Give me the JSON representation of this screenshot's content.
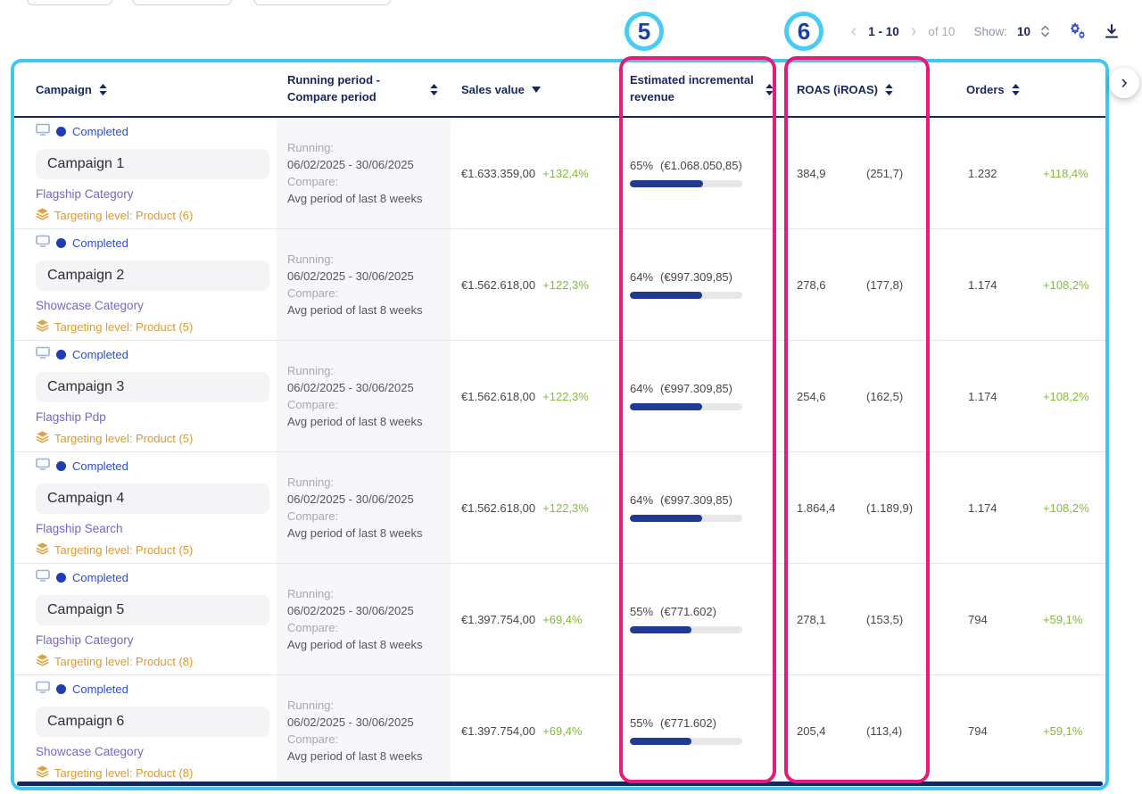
{
  "annotations": {
    "badge5": "5",
    "badge6": "6"
  },
  "icons": {
    "prev": "‹",
    "next": "›",
    "scroll_right": "›"
  },
  "pagination": {
    "range": "1 - 10",
    "of": "of 10",
    "show_label": "Show:",
    "show_value": "10"
  },
  "table": {
    "headers": [
      {
        "label": "Campaign",
        "sort": "unsorted"
      },
      {
        "label": "Running period - Compare period",
        "sort": "unsorted"
      },
      {
        "label": "Sales value",
        "sort": "desc"
      },
      {
        "label": "Estimated incremental revenue",
        "sort": "unsorted"
      },
      {
        "label": "ROAS (iROAS)",
        "sort": "unsorted"
      },
      {
        "label": "Orders",
        "sort": "unsorted"
      }
    ],
    "rows": [
      {
        "status": "Completed",
        "name": "Campaign 1",
        "category": "Flagship Category",
        "targeting": "Targeting level: Product (6)",
        "running_label": "Running:",
        "running_dates": "06/02/2025 - 30/06/2025",
        "compare_label": "Compare:",
        "compare_value": "Avg period of last 8 weeks",
        "sales_value": "€1.633.359,00",
        "sales_change": "+132,4%",
        "incr_pct": "65%",
        "incr_value": "(€1.068.050,85)",
        "incr_bar": 65,
        "roas": "384,9",
        "iroas": "(251,7)",
        "orders": "1.232",
        "orders_change": "+118,4%"
      },
      {
        "status": "Completed",
        "name": "Campaign 2",
        "category": "Showcase Category",
        "targeting": "Targeting level: Product (5)",
        "running_label": "Running:",
        "running_dates": "06/02/2025 - 30/06/2025",
        "compare_label": "Compare:",
        "compare_value": "Avg period of last 8 weeks",
        "sales_value": "€1.562.618,00",
        "sales_change": "+122,3%",
        "incr_pct": "64%",
        "incr_value": "(€997.309,85)",
        "incr_bar": 64,
        "roas": "278,6",
        "iroas": "(177,8)",
        "orders": "1.174",
        "orders_change": "+108,2%"
      },
      {
        "status": "Completed",
        "name": "Campaign 3",
        "category": "Flagship Pdp",
        "targeting": "Targeting level: Product (5)",
        "running_label": "Running:",
        "running_dates": "06/02/2025 - 30/06/2025",
        "compare_label": "Compare:",
        "compare_value": "Avg period of last 8 weeks",
        "sales_value": "€1.562.618,00",
        "sales_change": "+122,3%",
        "incr_pct": "64%",
        "incr_value": "(€997.309,85)",
        "incr_bar": 64,
        "roas": "254,6",
        "iroas": "(162,5)",
        "orders": "1.174",
        "orders_change": "+108,2%"
      },
      {
        "status": "Completed",
        "name": "Campaign 4",
        "category": "Flagship Search",
        "targeting": "Targeting level: Product (5)",
        "running_label": "Running:",
        "running_dates": "06/02/2025 - 30/06/2025",
        "compare_label": "Compare:",
        "compare_value": "Avg period of last 8 weeks",
        "sales_value": "€1.562.618,00",
        "sales_change": "+122,3%",
        "incr_pct": "64%",
        "incr_value": "(€997.309,85)",
        "incr_bar": 64,
        "roas": "1.864,4",
        "iroas": "(1.189,9)",
        "orders": "1.174",
        "orders_change": "+108,2%"
      },
      {
        "status": "Completed",
        "name": "Campaign 5",
        "category": "Flagship Category",
        "targeting": "Targeting level: Product (8)",
        "running_label": "Running:",
        "running_dates": "06/02/2025 - 30/06/2025",
        "compare_label": "Compare:",
        "compare_value": "Avg period of last 8 weeks",
        "sales_value": "€1.397.754,00",
        "sales_change": "+69,4%",
        "incr_pct": "55%",
        "incr_value": "(€771.602)",
        "incr_bar": 55,
        "roas": "278,1",
        "iroas": "(153,5)",
        "orders": "794",
        "orders_change": "+59,1%"
      },
      {
        "status": "Completed",
        "name": "Campaign 6",
        "category": "Showcase Category",
        "targeting": "Targeting level: Product (8)",
        "running_label": "Running:",
        "running_dates": "06/02/2025 - 30/06/2025",
        "compare_label": "Compare:",
        "compare_value": "Avg period of last 8 weeks",
        "sales_value": "€1.397.754,00",
        "sales_change": "+69,4%",
        "incr_pct": "55%",
        "incr_value": "(€771.602)",
        "incr_bar": 55,
        "roas": "205,4",
        "iroas": "(113,4)",
        "orders": "794",
        "orders_change": "+59,1%"
      }
    ]
  },
  "colors": {
    "accent_cyan": "#3cc8ef",
    "highlight_pink": "#e8197d",
    "navy": "#17265e",
    "status_blue": "#2b4ed3",
    "category_purple": "#7668c5",
    "targeting_orange": "#dc9a33",
    "positive_green": "#84bb3f",
    "progress_fill": "#1f3a93"
  }
}
